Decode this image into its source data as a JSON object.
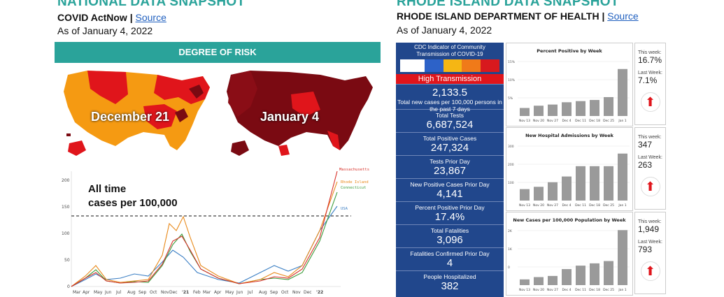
{
  "national": {
    "title": "NATIONAL DATA SNAPSHOT",
    "source_org": "COVID ActNow |",
    "source_link": "Source",
    "as_of": "As of January 4, 2022",
    "risk_header": "DEGREE OF RISK",
    "map1_label": "December 21",
    "map2_label": "January 4",
    "chart_caption_line1": "All time",
    "chart_caption_line2": "cases per 100,000"
  },
  "ri": {
    "title": "RHODE ISLAND DATA SNAPSHOT",
    "source_org": "RHODE ISLAND DEPARTMENT OF HEALTH |",
    "source_link": "Source",
    "as_of": "As of January 4, 2022",
    "cdc_title": "CDC Indicator of Community Transmission of COVID-19",
    "transmission": "High Transmission",
    "stats": [
      {
        "label": "Total new cases per 100,000 persons in the past 7 days",
        "value": "2,133.5"
      },
      {
        "label": "Total Tests",
        "value": "6,687,524"
      },
      {
        "label": "Total Positive Cases",
        "value": "247,324"
      },
      {
        "label": "Tests Prior Day",
        "value": "23,867"
      },
      {
        "label": "New Positive Cases Prior Day",
        "value": "4,141"
      },
      {
        "label": "Percent Positive Prior Day",
        "value": "17.4%"
      },
      {
        "label": "Total Fatalities",
        "value": "3,096"
      },
      {
        "label": "Fatalities Confirmed Prior Day",
        "value": "4"
      },
      {
        "label": "People Hospitalized",
        "value": "382"
      }
    ],
    "weekly_charts": [
      {
        "title": "Percent Positive by Week",
        "this_week_label": "This week:",
        "this_week": "16.7%",
        "last_week_label": "Last Week:",
        "last_week": "7.1%"
      },
      {
        "title": "New Hospital Admissions by Week",
        "this_week_label": "This week:",
        "this_week": "347",
        "last_week_label": "Last Week:",
        "last_week": "263"
      },
      {
        "title": "New Cases per 100,000 Population by Week",
        "this_week_label": "This week:",
        "this_week": "1,949",
        "last_week_label": "Last Week:",
        "last_week": "793"
      }
    ],
    "week_labels": [
      "Nov 13",
      "Nov 20",
      "Nov 27",
      "Dec 4",
      "Dec 11",
      "Dec 18",
      "Dec 25",
      "Jan 1"
    ]
  },
  "colors": {
    "teal": "#2aa39a",
    "navy": "#21478c",
    "red": "#e0151b",
    "darkred": "#7a0a12",
    "orange": "#f59a12"
  }
}
